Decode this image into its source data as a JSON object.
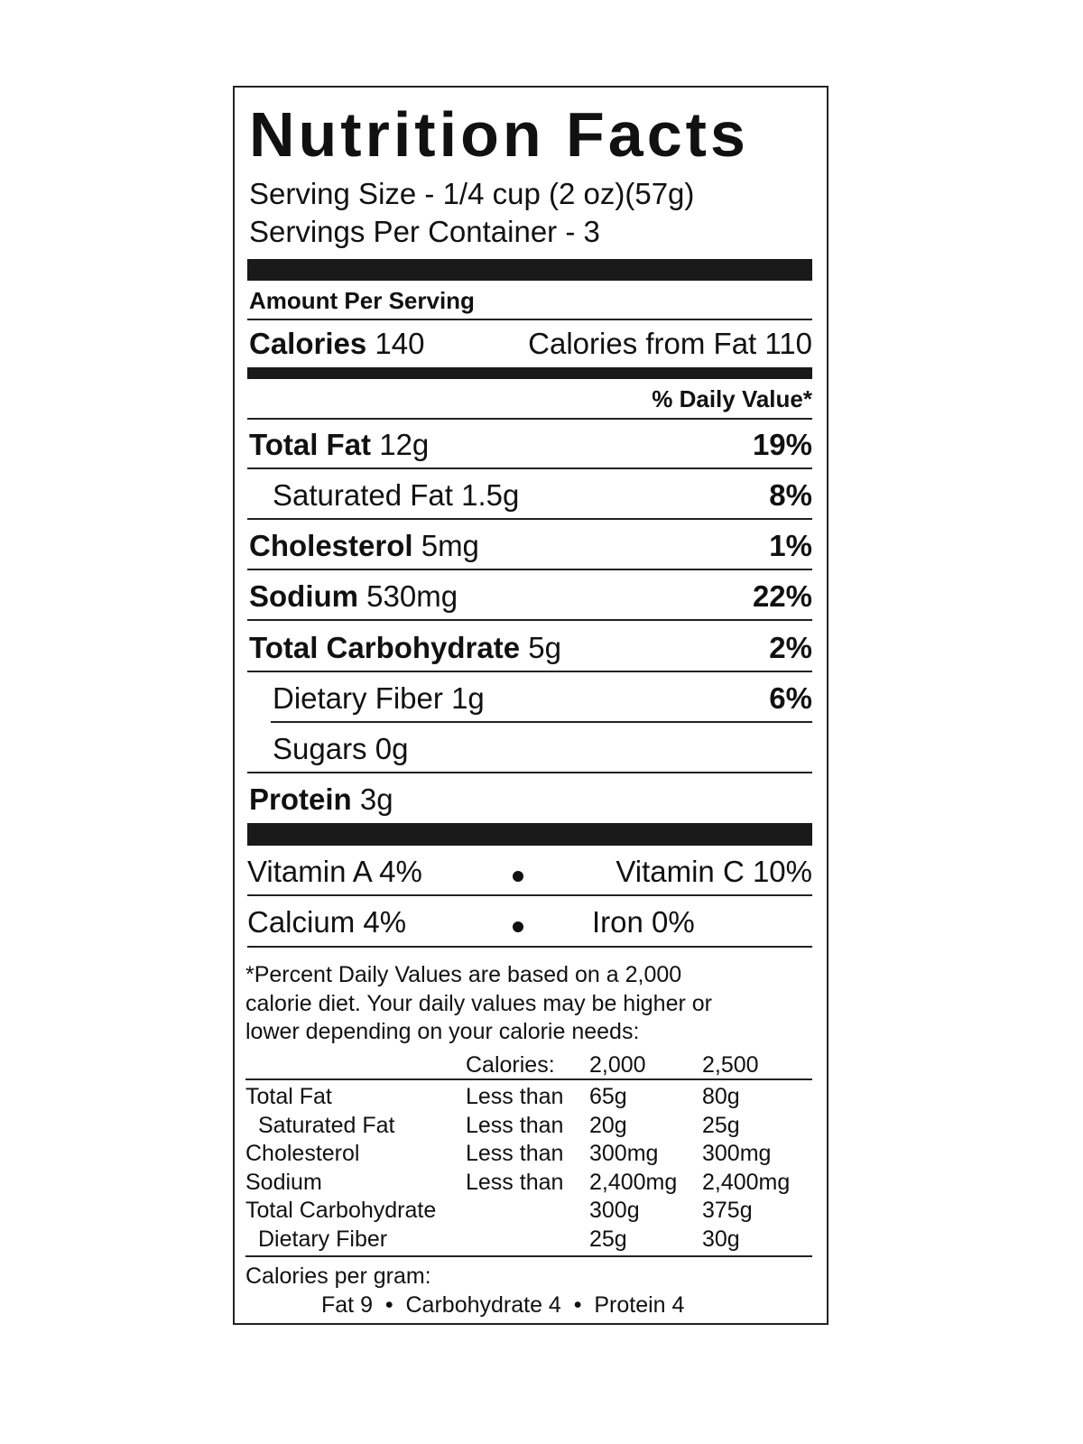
{
  "title": "Nutrition Facts",
  "serving_size": "Serving Size -  1/4 cup (2 oz)(57g)",
  "servings_per_container": "Servings Per Container -  3",
  "amount_per_serving": "Amount Per Serving",
  "calories": {
    "label": "Calories",
    "value": "140",
    "from_fat": "Calories from Fat 110"
  },
  "daily_value_header": "% Daily Value*",
  "nutrients": [
    {
      "name": "Total Fat",
      "amount": "12g",
      "dv": "19%"
    },
    {
      "name": "Saturated Fat",
      "amount": "1.5g",
      "dv": "8%"
    },
    {
      "name": "Cholesterol",
      "amount": "5mg",
      "dv": "1%"
    },
    {
      "name": "Sodium",
      "amount": "530mg",
      "dv": "22%"
    },
    {
      "name": "Total Carbohydrate",
      "amount": "5g",
      "dv": "2%"
    },
    {
      "name": "Dietary Fiber",
      "amount": "1g",
      "dv": "6%"
    },
    {
      "name": "Sugars",
      "amount": "0g",
      "dv": ""
    },
    {
      "name": "Protein",
      "amount": "3g",
      "dv": ""
    }
  ],
  "vitamins": [
    "Vitamin A 4%",
    "Vitamin C 10%",
    "Calcium 4%",
    "Iron 0%"
  ],
  "footnote": [
    "*Percent Daily Values are based on a 2,000",
    "calorie diet. Your daily values may be higher or",
    "lower depending on your calorie needs:"
  ],
  "dv_table": {
    "header": [
      "Calories:",
      "2,000",
      "2,500"
    ],
    "rows": [
      [
        "Total Fat",
        "Less than",
        "65g",
        "80g"
      ],
      [
        "Saturated Fat",
        "Less than",
        "20g",
        "25g"
      ],
      [
        "Cholesterol",
        "Less than",
        "300mg",
        "300mg"
      ],
      [
        "Sodium",
        "Less than",
        "2,400mg",
        "2,400mg"
      ],
      [
        "Total Carbohydrate",
        "",
        "300g",
        "375g"
      ],
      [
        "Dietary Fiber",
        "",
        "25g",
        "30g"
      ]
    ]
  },
  "calories_per_gram": {
    "label": "Calories per gram:",
    "values": "Fat 9  •  Carbohydrate 4  •  Protein 4"
  }
}
